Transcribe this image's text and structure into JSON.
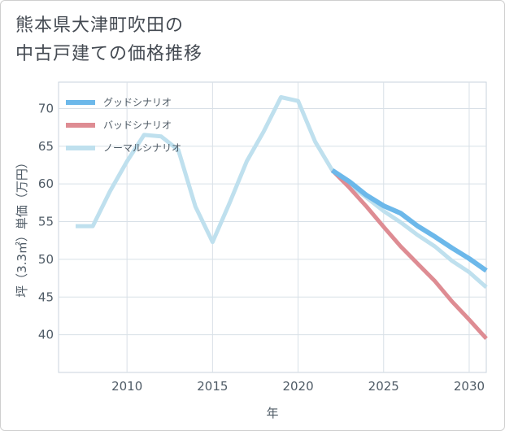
{
  "title_lines": [
    "熊本県大津町吹田の",
    "中古戸建ての価格推移"
  ],
  "chart_data": {
    "type": "line",
    "title": "熊本県大津町吹田の中古戸建ての価格推移",
    "xlabel": "年",
    "ylabel": "坪（3.3㎡）単価（万円）",
    "xlim": [
      2006,
      2031
    ],
    "ylim": [
      35,
      73.5
    ],
    "xticks": [
      2010,
      2015,
      2020,
      2025,
      2030
    ],
    "yticks": [
      40,
      45,
      50,
      55,
      60,
      65,
      70
    ],
    "legend_position": "top-left",
    "series": [
      {
        "name": "グッドシナリオ",
        "color": "#6cb8ea",
        "points": [
          [
            2022,
            61.8
          ],
          [
            2023,
            60.3
          ],
          [
            2024,
            58.5
          ],
          [
            2025,
            57.1
          ],
          [
            2026,
            56.1
          ],
          [
            2027,
            54.4
          ],
          [
            2028,
            53.0
          ],
          [
            2029,
            51.5
          ],
          [
            2030,
            50.1
          ],
          [
            2031,
            48.5
          ]
        ]
      },
      {
        "name": "バッドシナリオ",
        "color": "#de8c93",
        "points": [
          [
            2022,
            61.8
          ],
          [
            2023,
            59.5
          ],
          [
            2024,
            57.0
          ],
          [
            2025,
            54.3
          ],
          [
            2026,
            51.7
          ],
          [
            2027,
            49.4
          ],
          [
            2028,
            47.1
          ],
          [
            2029,
            44.4
          ],
          [
            2030,
            42.0
          ],
          [
            2031,
            39.5
          ]
        ]
      },
      {
        "name": "ノーマルシナリオ",
        "color": "#bfe0ee",
        "points": [
          [
            2007,
            54.4
          ],
          [
            2008,
            54.4
          ],
          [
            2009,
            59.0
          ],
          [
            2010,
            63.0
          ],
          [
            2011,
            66.5
          ],
          [
            2012,
            66.3
          ],
          [
            2013,
            64.5
          ],
          [
            2014,
            57.0
          ],
          [
            2015,
            52.3
          ],
          [
            2016,
            57.5
          ],
          [
            2017,
            63.0
          ],
          [
            2018,
            67.0
          ],
          [
            2019,
            71.5
          ],
          [
            2020,
            71.0
          ],
          [
            2021,
            65.6
          ],
          [
            2022,
            61.8
          ],
          [
            2023,
            59.9
          ],
          [
            2024,
            58.2
          ],
          [
            2025,
            56.4
          ],
          [
            2026,
            54.9
          ],
          [
            2027,
            53.2
          ],
          [
            2028,
            51.7
          ],
          [
            2029,
            49.8
          ],
          [
            2030,
            48.3
          ],
          [
            2031,
            46.3
          ]
        ]
      }
    ]
  }
}
